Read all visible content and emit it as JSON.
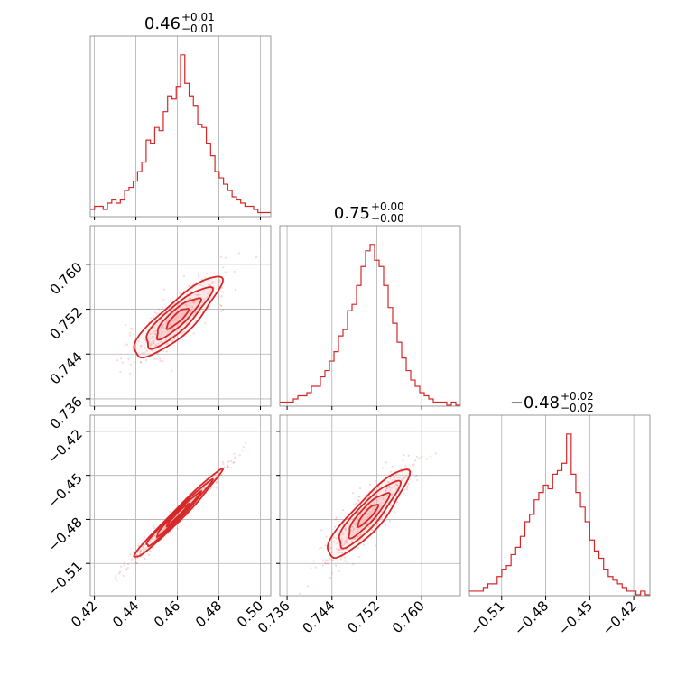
{
  "chart_data": {
    "type": "corner",
    "color": "#d62728",
    "fill_color": "#f6b6b6",
    "grid": true,
    "parameters": [
      {
        "title_value": "0.46",
        "title_plus": "+0.01",
        "title_minus": "−0.01",
        "center": 0.46,
        "sigma": 0.0105,
        "range": [
          0.418,
          0.505
        ],
        "ticks": [
          0.42,
          0.44,
          0.46,
          0.48,
          0.5
        ],
        "tick_labels": [
          "0.42",
          "0.44",
          "0.46",
          "0.48",
          "0.50"
        ]
      },
      {
        "title_value": "0.75",
        "title_plus": "+0.00",
        "title_minus": "−0.00",
        "center": 0.7504,
        "sigma": 0.0036,
        "range": [
          0.7347,
          0.7669
        ],
        "ticks": [
          0.736,
          0.744,
          0.752,
          0.76
        ],
        "tick_labels": [
          "0.736",
          "0.744",
          "0.752",
          "0.760"
        ]
      },
      {
        "title_value": "−0.48",
        "title_plus": "+0.02",
        "title_minus": "−0.02",
        "center": -0.477,
        "sigma": 0.015,
        "range": [
          -0.532,
          -0.409
        ],
        "ticks": [
          -0.51,
          -0.48,
          -0.45,
          -0.42
        ],
        "tick_labels": [
          "−0.51",
          "−0.48",
          "−0.45",
          "−0.42"
        ]
      }
    ],
    "histograms": [
      {
        "param": 0,
        "counts": [
          2,
          3,
          3,
          2,
          4,
          5,
          4,
          5,
          8,
          9,
          11,
          14,
          17,
          24,
          23,
          28,
          27,
          33,
          38,
          37,
          41,
          51,
          42,
          38,
          35,
          29,
          28,
          23,
          19,
          14,
          12,
          10,
          8,
          6,
          5,
          4,
          3,
          3,
          2,
          1,
          1,
          1
        ]
      },
      {
        "param": 1,
        "counts": [
          1,
          1,
          1,
          2,
          3,
          3,
          4,
          6,
          6,
          9,
          11,
          14,
          17,
          22,
          24,
          30,
          32,
          38,
          44,
          49,
          51,
          46,
          44,
          38,
          31,
          26,
          20,
          15,
          11,
          8,
          6,
          4,
          3,
          2,
          1,
          1,
          1,
          0,
          1,
          0
        ]
      },
      {
        "param": 2,
        "counts": [
          1,
          1,
          1,
          2,
          3,
          3,
          5,
          7,
          8,
          11,
          13,
          16,
          20,
          22,
          26,
          28,
          30,
          29,
          33,
          34,
          36,
          44,
          33,
          28,
          24,
          20,
          15,
          12,
          10,
          7,
          5,
          4,
          3,
          2,
          1,
          1,
          0,
          1,
          0
        ]
      }
    ],
    "pairs": [
      {
        "x_param": 0,
        "y_param": 1,
        "correlation": 0.86
      },
      {
        "x_param": 0,
        "y_param": 2,
        "correlation": 0.985
      },
      {
        "x_param": 1,
        "y_param": 2,
        "correlation": 0.88
      }
    ]
  }
}
